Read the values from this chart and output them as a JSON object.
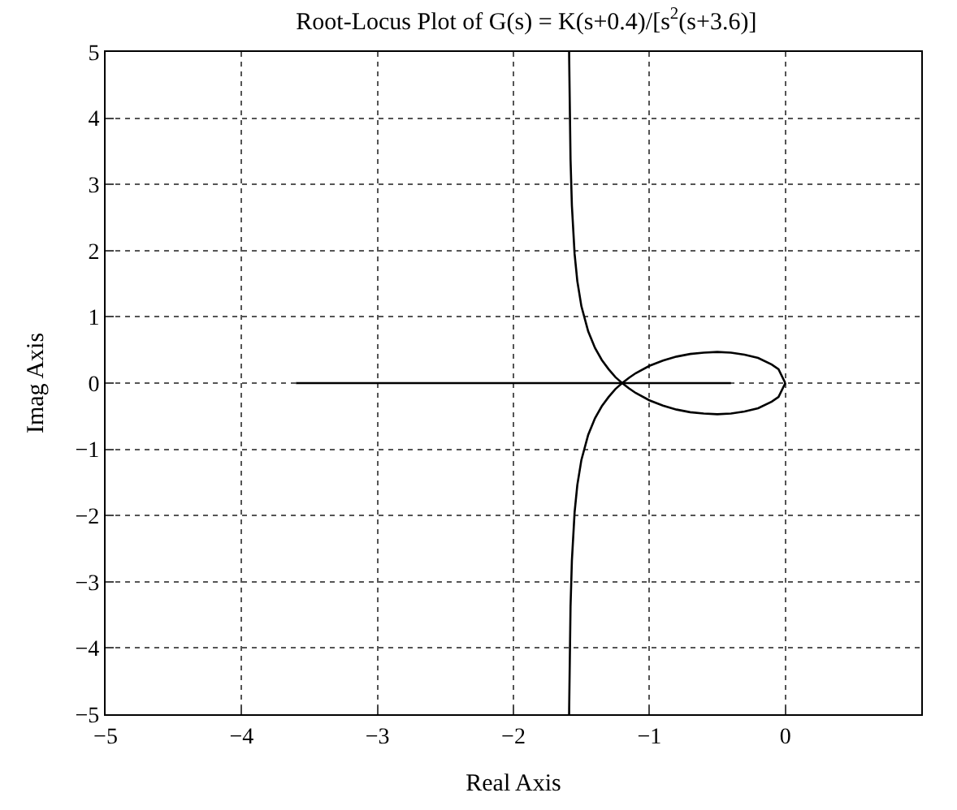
{
  "chart_data": {
    "type": "line",
    "title": "Root-Locus Plot of G(s) = K(s+0.4)/[s$^{2}$(s+3.6)]",
    "xlabel": "Real Axis",
    "ylabel": "Imag Axis",
    "xlim": [
      -5,
      1
    ],
    "ylim": [
      -5,
      5
    ],
    "xticks": [
      -5,
      -4,
      -3,
      -2,
      -1,
      0
    ],
    "yticks": [
      -5,
      -4,
      -3,
      -2,
      -1,
      0,
      1,
      2,
      3,
      4,
      5
    ],
    "grid": true,
    "marker": "none",
    "line_style": "solid",
    "series": [
      {
        "color": "#000000",
        "x": [
          -3.6,
          -0.4
        ],
        "values": [
          0,
          0
        ]
      },
      {
        "color": "#000000",
        "x": [
          0,
          -0.05,
          -0.1,
          -0.2,
          -0.3,
          -0.4,
          -0.5,
          -0.6,
          -0.7,
          -0.8,
          -0.9,
          -1.0,
          -1.1,
          -1.15,
          -1.2,
          -1.25,
          -1.3,
          -1.35,
          -1.4,
          -1.45,
          -1.5,
          -1.53,
          -1.55,
          -1.57,
          -1.58,
          -1.59,
          -1.5903
        ],
        "values": [
          0,
          0.21,
          0.28,
          0.38,
          0.43,
          0.46,
          0.47,
          0.46,
          0.44,
          0.4,
          0.34,
          0.26,
          0.15,
          0.08,
          0,
          0.09,
          0.21,
          0.35,
          0.53,
          0.78,
          1.16,
          1.54,
          1.95,
          2.68,
          3.38,
          4.92,
          5
        ]
      },
      {
        "color": "#000000",
        "x": [
          0,
          -0.05,
          -0.1,
          -0.2,
          -0.3,
          -0.4,
          -0.5,
          -0.6,
          -0.7,
          -0.8,
          -0.9,
          -1.0,
          -1.1,
          -1.15,
          -1.2,
          -1.25,
          -1.3,
          -1.35,
          -1.4,
          -1.45,
          -1.5,
          -1.53,
          -1.55,
          -1.57,
          -1.58,
          -1.59,
          -1.5903
        ],
        "values": [
          0,
          -0.21,
          -0.28,
          -0.38,
          -0.43,
          -0.46,
          -0.47,
          -0.46,
          -0.44,
          -0.4,
          -0.34,
          -0.26,
          -0.15,
          -0.08,
          0,
          -0.09,
          -0.21,
          -0.35,
          -0.53,
          -0.78,
          -1.16,
          -1.54,
          -1.95,
          -2.68,
          -3.38,
          -4.92,
          -5
        ]
      }
    ]
  }
}
